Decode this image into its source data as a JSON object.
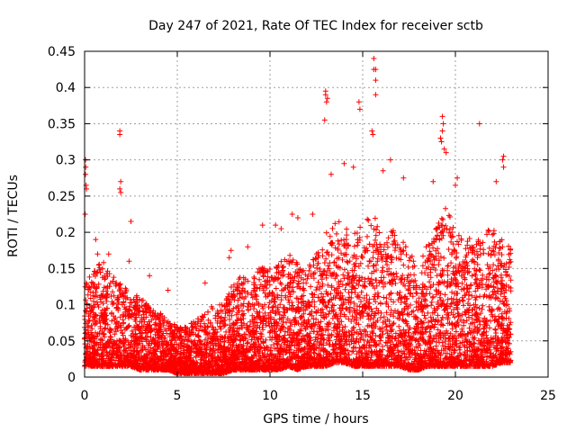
{
  "chart_data": {
    "type": "scatter",
    "title": "Day 247 of 2021, Rate Of TEC Index for receiver sctb",
    "xlabel": "GPS time / hours",
    "ylabel": "ROTI / TECUs",
    "xlim": [
      0,
      25
    ],
    "ylim": [
      0,
      0.45
    ],
    "xticks": [
      0,
      5,
      10,
      15,
      20,
      25
    ],
    "xtick_labels": [
      "0",
      "5",
      "10",
      "15",
      "20",
      "25"
    ],
    "yticks": [
      0,
      0.05,
      0.1,
      0.15,
      0.2,
      0.25,
      0.3,
      0.35,
      0.4,
      0.45
    ],
    "ytick_labels": [
      "0",
      "0.05",
      "0.1",
      "0.15",
      "0.2",
      "0.25",
      "0.3",
      "0.35",
      "0.4",
      "0.45"
    ],
    "grid": true,
    "marker": "+",
    "color": "#ff0000",
    "data_x_range": [
      0,
      23
    ],
    "envelope": {
      "x": [
        0,
        0.5,
        1,
        1.5,
        2,
        2.5,
        3,
        3.5,
        4,
        4.5,
        5,
        5.5,
        6,
        6.5,
        7,
        7.5,
        8,
        8.5,
        9,
        9.5,
        10,
        10.5,
        11,
        11.5,
        12,
        12.5,
        13,
        13.5,
        14,
        14.5,
        15,
        15.5,
        16,
        16.5,
        17,
        17.5,
        18,
        18.5,
        19,
        19.5,
        20,
        20.5,
        21,
        21.5,
        22,
        22.5,
        23
      ],
      "upper": [
        0.13,
        0.15,
        0.16,
        0.14,
        0.13,
        0.12,
        0.11,
        0.1,
        0.09,
        0.08,
        0.07,
        0.07,
        0.08,
        0.09,
        0.1,
        0.1,
        0.13,
        0.14,
        0.13,
        0.16,
        0.15,
        0.16,
        0.17,
        0.16,
        0.15,
        0.17,
        0.2,
        0.22,
        0.21,
        0.2,
        0.22,
        0.23,
        0.2,
        0.21,
        0.19,
        0.18,
        0.15,
        0.19,
        0.21,
        0.24,
        0.2,
        0.21,
        0.18,
        0.2,
        0.21,
        0.19,
        0.18
      ],
      "lower": [
        0.015,
        0.015,
        0.015,
        0.015,
        0.015,
        0.015,
        0.01,
        0.01,
        0.01,
        0.01,
        0.005,
        0.005,
        0.005,
        0.005,
        0.005,
        0.005,
        0.01,
        0.01,
        0.01,
        0.01,
        0.01,
        0.01,
        0.015,
        0.01,
        0.015,
        0.015,
        0.015,
        0.02,
        0.02,
        0.015,
        0.015,
        0.015,
        0.015,
        0.015,
        0.015,
        0.01,
        0.01,
        0.015,
        0.015,
        0.015,
        0.015,
        0.015,
        0.015,
        0.015,
        0.015,
        0.02,
        0.02
      ]
    },
    "outliers": [
      [
        0.05,
        0.3
      ],
      [
        0.06,
        0.29
      ],
      [
        0.05,
        0.28
      ],
      [
        0.1,
        0.26
      ],
      [
        0.08,
        0.265
      ],
      [
        0.03,
        0.225
      ],
      [
        1.9,
        0.34
      ],
      [
        1.9,
        0.335
      ],
      [
        1.95,
        0.27
      ],
      [
        1.95,
        0.255
      ],
      [
        1.9,
        0.26
      ],
      [
        2.5,
        0.215
      ],
      [
        13.0,
        0.39
      ],
      [
        13.05,
        0.38
      ],
      [
        13.1,
        0.385
      ],
      [
        13.0,
        0.395
      ],
      [
        12.95,
        0.355
      ],
      [
        14.8,
        0.38
      ],
      [
        14.85,
        0.37
      ],
      [
        15.6,
        0.44
      ],
      [
        15.7,
        0.425
      ],
      [
        15.7,
        0.41
      ],
      [
        15.6,
        0.425
      ],
      [
        15.7,
        0.39
      ],
      [
        15.5,
        0.34
      ],
      [
        15.55,
        0.335
      ],
      [
        19.3,
        0.36
      ],
      [
        19.35,
        0.35
      ],
      [
        19.3,
        0.34
      ],
      [
        19.2,
        0.33
      ],
      [
        19.4,
        0.315
      ],
      [
        19.5,
        0.31
      ],
      [
        19.25,
        0.325
      ],
      [
        21.3,
        0.35
      ],
      [
        22.6,
        0.305
      ],
      [
        22.55,
        0.3
      ],
      [
        22.6,
        0.29
      ],
      [
        14.5,
        0.29
      ],
      [
        16.1,
        0.285
      ],
      [
        16.5,
        0.3
      ],
      [
        14.0,
        0.295
      ],
      [
        13.3,
        0.28
      ],
      [
        17.2,
        0.275
      ],
      [
        20.1,
        0.275
      ],
      [
        20.0,
        0.265
      ],
      [
        18.8,
        0.27
      ],
      [
        22.2,
        0.27
      ],
      [
        10.3,
        0.21
      ],
      [
        11.2,
        0.225
      ],
      [
        11.5,
        0.22
      ],
      [
        9.6,
        0.21
      ],
      [
        10.6,
        0.205
      ],
      [
        12.3,
        0.225
      ],
      [
        7.9,
        0.175
      ],
      [
        7.8,
        0.165
      ],
      [
        8.8,
        0.18
      ],
      [
        6.5,
        0.13
      ],
      [
        4.5,
        0.12
      ],
      [
        3.5,
        0.14
      ],
      [
        0.6,
        0.19
      ],
      [
        0.7,
        0.17
      ],
      [
        1.3,
        0.17
      ],
      [
        2.4,
        0.16
      ]
    ]
  }
}
